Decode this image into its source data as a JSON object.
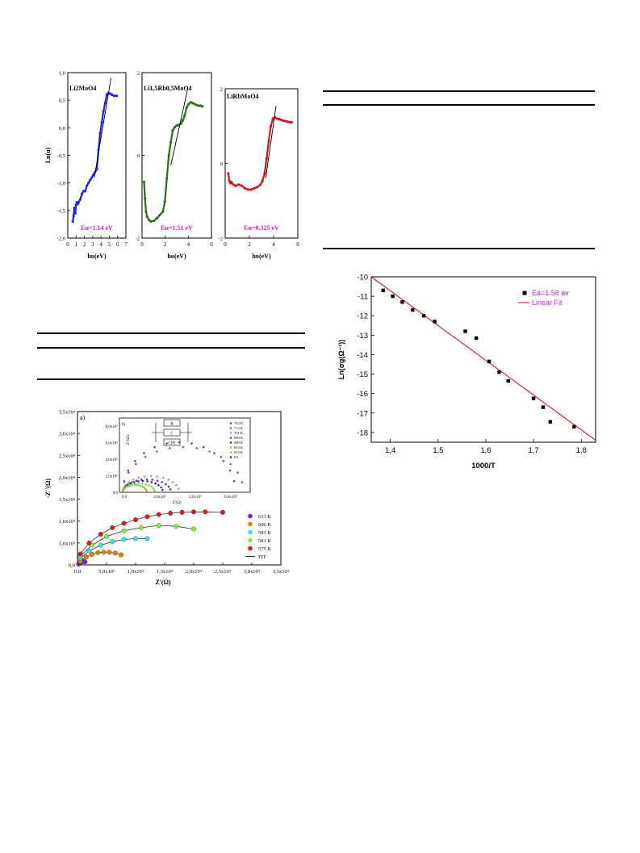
{
  "chart_data": [
    {
      "type": "scatter",
      "panel_label": "Li2MoO4",
      "ylabel": "Ln(α)",
      "xlabel": "hυ(eV)",
      "xlim": [
        0,
        7
      ],
      "ylim": [
        -2.0,
        1.0
      ],
      "xticks": [
        "0",
        "1",
        "2",
        "3",
        "4",
        "5",
        "6",
        "7"
      ],
      "yticks": [
        "1,0",
        "0,5",
        "0,0",
        "-0,5",
        "-1,0",
        "-1,5",
        "-2,0"
      ],
      "color": "#2020ff",
      "annotation": "Eu=1.14 eV",
      "x": [
        0.6,
        0.7,
        0.8,
        0.9,
        1.0,
        1.1,
        1.2,
        1.3,
        1.5,
        1.7,
        1.9,
        2.1,
        2.3,
        2.5,
        2.7,
        2.9,
        3.1,
        3.3,
        3.5,
        3.7,
        3.9,
        4.1,
        4.3,
        4.5,
        4.7,
        4.9,
        5.1,
        5.3,
        5.6,
        5.9
      ],
      "y": [
        -1.7,
        -1.6,
        -1.45,
        -1.55,
        -1.4,
        -1.35,
        -1.38,
        -1.35,
        -1.3,
        -1.2,
        -1.15,
        -1.15,
        -1.05,
        -1.0,
        -0.95,
        -0.9,
        -0.85,
        -0.8,
        -0.75,
        -0.4,
        -0.1,
        0.1,
        0.3,
        0.45,
        0.6,
        0.63,
        0.62,
        0.6,
        0.58,
        0.58
      ],
      "fit_x": [
        3.2,
        5.2
      ],
      "fit_y": [
        -0.9,
        0.9
      ]
    },
    {
      "type": "scatter",
      "panel_label": "Li1,5Rb0,5MoO4",
      "xlabel": "hυ(eV)",
      "xlim": [
        0,
        7
      ],
      "ylim": [
        -3,
        2
      ],
      "xticks": [
        "0",
        "2",
        "4",
        "6"
      ],
      "yticks": [
        "2",
        "0",
        "-2"
      ],
      "color": "#2e6e1a",
      "annotation": "Eu=1.51 eV",
      "x": [
        0.2,
        0.3,
        0.4,
        0.5,
        0.7,
        0.9,
        1.2,
        1.5,
        1.8,
        2.1,
        2.3,
        2.5,
        2.7,
        2.9,
        3.1,
        3.3,
        3.5,
        3.7,
        3.9,
        4.1,
        4.3,
        4.5,
        4.7,
        4.9,
        5.1,
        5.3,
        5.5,
        5.7,
        5.9,
        6.1
      ],
      "y": [
        -1.3,
        -1.8,
        -2.2,
        -2.35,
        -2.45,
        -2.5,
        -2.48,
        -2.4,
        -2.3,
        -2.2,
        -1.9,
        -1.2,
        -0.5,
        -0.1,
        0.25,
        0.35,
        0.4,
        0.42,
        0.45,
        0.55,
        0.7,
        0.95,
        1.05,
        1.1,
        1.08,
        1.05,
        1.02,
        1.0,
        1.0,
        0.98
      ],
      "fit_x": [
        2.9,
        4.6
      ],
      "fit_y": [
        -0.8,
        1.5
      ]
    },
    {
      "type": "scatter",
      "panel_label": "LiRbMoO4",
      "xlabel": "hυ(eV)",
      "xlim": [
        0,
        7
      ],
      "ylim": [
        -3,
        3
      ],
      "xticks": [
        "0",
        "2",
        "4",
        "6"
      ],
      "yticks": [
        "2",
        "0",
        "-2"
      ],
      "color": "#d01818",
      "annotation": "Eu=0.325 eV",
      "x": [
        0.3,
        0.4,
        0.5,
        0.6,
        0.8,
        1.0,
        1.3,
        1.6,
        1.9,
        2.2,
        2.5,
        2.8,
        3.1,
        3.4,
        3.6,
        3.8,
        4.0,
        4.2,
        4.4,
        4.6,
        4.8,
        5.0,
        5.2,
        5.4,
        5.6,
        5.8,
        6.0,
        6.2,
        6.4
      ],
      "y": [
        -0.4,
        -0.7,
        -0.8,
        -0.75,
        -0.85,
        -0.9,
        -0.85,
        -0.9,
        -1.0,
        -1.05,
        -1.05,
        -1.0,
        -0.95,
        -0.85,
        -0.7,
        -0.4,
        0.2,
        0.9,
        1.5,
        1.8,
        1.85,
        1.8,
        1.78,
        1.75,
        1.72,
        1.7,
        1.68,
        1.66,
        1.65
      ],
      "fit_x": [
        3.9,
        4.9
      ],
      "fit_y": [
        -0.6,
        2.3
      ]
    },
    {
      "type": "scatter",
      "panel_label": "a)",
      "xlabel": "Z'(Ω)",
      "ylabel": "-Z''(Ω)",
      "xlim": [
        0,
        35000
      ],
      "ylim": [
        0,
        35000
      ],
      "xticks": [
        "0,0",
        "5,0x10³",
        "1,0x10⁴",
        "1,5x10⁴",
        "2,0x10⁴",
        "2,5x10⁴",
        "3,0x10⁴",
        "3,5x10⁴"
      ],
      "yticks": [
        "0,0",
        "5,0x10³",
        "1,0x10⁴",
        "1,5x10⁴",
        "2,0x10⁴",
        "2,5x10⁴",
        "3,0x10⁴",
        "3,5x10⁴"
      ],
      "legend": [
        "613 K",
        "606 K",
        "581 K",
        "581 K",
        "575 K",
        "FIT"
      ],
      "legend_colors": [
        "#6a2ad0",
        "#e08010",
        "#40e0e0",
        "#80f040",
        "#d02020",
        "#333333"
      ],
      "series": [
        {
          "name": "613 K",
          "x": [
            200,
            400,
            700,
            1000,
            1300
          ],
          "y": [
            200,
            500,
            700,
            800,
            700
          ]
        },
        {
          "name": "606 K",
          "x": [
            500,
            1500,
            2500,
            3500,
            4500,
            5500,
            6500,
            7500
          ],
          "y": [
            800,
            1800,
            2400,
            2800,
            2900,
            2900,
            2700,
            2300
          ]
        },
        {
          "name": "581 K",
          "x": [
            500,
            2000,
            4000,
            6000,
            8000,
            10000,
            12000
          ],
          "y": [
            1500,
            3200,
            4500,
            5300,
            5800,
            6000,
            6000
          ]
        },
        {
          "name": "581 K",
          "x": [
            500,
            2500,
            5000,
            8000,
            11000,
            14000,
            17000,
            20000
          ],
          "y": [
            2000,
            4500,
            6500,
            7800,
            8500,
            9000,
            8800,
            8200
          ]
        },
        {
          "name": "575 K",
          "x": [
            500,
            2000,
            4000,
            6000,
            8000,
            10000,
            12000,
            14000,
            16000,
            18000,
            20000,
            22000,
            25000
          ],
          "y": [
            2500,
            5000,
            7000,
            8500,
            9500,
            10300,
            11000,
            11500,
            11800,
            12000,
            12100,
            12100,
            12000
          ]
        }
      ],
      "inset_label": "b)",
      "inset_xlabel": "Z'(Ω)",
      "inset_ylabel": "-Z''(Ω)",
      "inset_xticks": [
        "0,0",
        "2,0x10⁵",
        "4,0x10⁵",
        "6,0x10⁵"
      ],
      "inset_yticks": [
        "0,0",
        "2,0x10⁵",
        "4,0x10⁵",
        "6,0x10⁵",
        "8,0x10⁵"
      ],
      "inset_legend": [
        "703 K",
        "713 K",
        "701 K",
        "690 K",
        "680 K",
        "663 K",
        "655 K",
        "Fit"
      ],
      "inset_legend_colors": [
        "#555555",
        "#c040c0",
        "#d080d0",
        "#6a2ad0",
        "#303090",
        "#80d040",
        "#90c040",
        "#333333"
      ],
      "circuit_labels": [
        "R",
        "C",
        "CPE"
      ]
    },
    {
      "type": "scatter",
      "xlabel": "1000/T",
      "ylabel": "Ln(σg(Ω⁻¹))",
      "xlim": [
        1.36,
        1.83
      ],
      "ylim": [
        -18.5,
        -10
      ],
      "xticks": [
        "1,4",
        "1,5",
        "1,6",
        "1,7",
        "1,8"
      ],
      "yticks": [
        "-10",
        "-11",
        "-12",
        "-13",
        "-14",
        "-15",
        "-16",
        "-17",
        "-18"
      ],
      "legend": [
        "Ea=1.58 ev",
        "Linear Fit"
      ],
      "legend_colors": [
        "#000000",
        "#d02020"
      ],
      "legend_text_color": "#d020d0",
      "x": [
        1.385,
        1.405,
        1.425,
        1.447,
        1.47,
        1.493,
        1.557,
        1.58,
        1.607,
        1.628,
        1.647,
        1.7,
        1.72,
        1.735,
        1.785
      ],
      "y": [
        -10.7,
        -11.0,
        -11.3,
        -11.7,
        -12.0,
        -12.3,
        -12.8,
        -13.15,
        -14.35,
        -14.9,
        -15.35,
        -16.25,
        -16.7,
        -17.45,
        -17.7
      ],
      "fit_x": [
        1.36,
        1.83
      ],
      "fit_y": [
        -10.0,
        -18.4
      ]
    }
  ]
}
